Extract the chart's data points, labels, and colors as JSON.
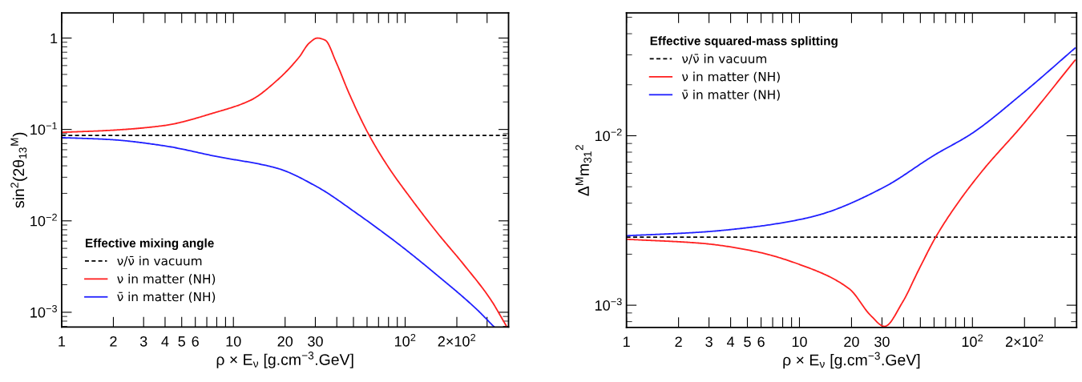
{
  "chart_data": [
    {
      "type": "line",
      "xlabel": "ρ × E$_{ν}$ [g.cm$^{−3}$.GeV]",
      "ylabel": "sin$^{2}$(2θ$_{13}$$^{M}$)",
      "legend_title": "Effective mixing angle",
      "legend": "bottom left",
      "log": "xy",
      "grid": false,
      "line_style": "solid",
      "marker": "none",
      "xlim": [
        1,
        400
      ],
      "ylim": [
        0.00069,
        1.88
      ],
      "xticks": [
        1,
        2,
        3,
        4,
        5,
        6,
        {
          "value": 7,
          "label": null
        },
        {
          "value": 8,
          "label": null
        },
        {
          "value": 9,
          "label": null
        },
        10,
        20,
        30,
        {
          "value": 40,
          "label": null
        },
        {
          "value": 50,
          "label": null
        },
        {
          "value": 60,
          "label": null
        },
        {
          "value": 70,
          "label": null
        },
        {
          "value": 80,
          "label": null
        },
        {
          "value": 90,
          "label": null
        },
        {
          "value": 100,
          "label": "10$^{2}$"
        },
        {
          "value": 200,
          "label": "2×10$^{2}$"
        },
        {
          "value": 300,
          "label": null
        }
      ],
      "yticks": [
        {
          "value": 0.001,
          "label": "10$^{−3}$"
        },
        {
          "value": 0.01,
          "label": "10$^{−2}$"
        },
        {
          "value": 0.1,
          "label": "10$^{−1}$"
        },
        1
      ],
      "ref_lines": [
        {
          "axis": "y",
          "value": 0.086,
          "label": "ν/ν̄ in vacuum",
          "color": "#000000",
          "line_style": "dashed"
        }
      ],
      "series": [
        {
          "name": "ν in matter (NH)",
          "color": "#ff2020",
          "x": [
            1,
            1.9,
            3.9,
            7.9,
            12.6,
            18,
            24,
            27.7,
            30.8,
            34.3,
            39.5,
            47.2,
            61.8,
            80.7,
            107,
            153,
            219,
            313,
            388
          ],
          "values": [
            0.093,
            0.0977,
            0.11,
            0.154,
            0.209,
            0.346,
            0.61,
            0.885,
            1.0,
            0.946,
            0.553,
            0.247,
            0.086,
            0.0376,
            0.018,
            0.0075,
            0.00334,
            0.0014,
            0.00071
          ]
        },
        {
          "name": "ν̄ in matter (NH)",
          "color": "#2020ff",
          "x": [
            1,
            1.9,
            3.9,
            7.9,
            18,
            30.8,
            52.5,
            89.8,
            153,
            262,
            330
          ],
          "values": [
            0.0814,
            0.0776,
            0.0665,
            0.0508,
            0.0376,
            0.0235,
            0.012,
            0.00573,
            0.00256,
            0.00107,
            0.00069
          ]
        }
      ]
    },
    {
      "type": "line",
      "xlabel": "ρ × E$_{ν}$ [g.cm$^{−3}$.GeV]",
      "ylabel": "Δ$^{M}$m$_{31}$$^{2}$",
      "legend_title": "Effective squared-mass splitting",
      "legend": "top left",
      "log": "xy",
      "grid": false,
      "line_style": "solid",
      "marker": "none",
      "xlim": [
        1,
        400
      ],
      "ylim": [
        0.00074,
        0.053
      ],
      "xticks": [
        1,
        2,
        3,
        4,
        5,
        6,
        {
          "value": 7,
          "label": null
        },
        {
          "value": 8,
          "label": null
        },
        {
          "value": 9,
          "label": null
        },
        10,
        20,
        30,
        {
          "value": 40,
          "label": null
        },
        {
          "value": 50,
          "label": null
        },
        {
          "value": 60,
          "label": null
        },
        {
          "value": 70,
          "label": null
        },
        {
          "value": 80,
          "label": null
        },
        {
          "value": 90,
          "label": null
        },
        {
          "value": 100,
          "label": "10$^{2}$"
        },
        {
          "value": 200,
          "label": "2×10$^{2}$"
        },
        {
          "value": 300,
          "label": null
        }
      ],
      "yticks": [
        {
          "value": 0.001,
          "label": "10$^{−3}$"
        },
        {
          "value": 0.01,
          "label": "10$^{−2}$"
        }
      ],
      "ref_lines": [
        {
          "axis": "y",
          "value": 0.00252,
          "label": "ν/ν̄ in vacuum",
          "color": "#000000",
          "line_style": "dashed"
        }
      ],
      "series": [
        {
          "name": "ν in matter (NH)",
          "color": "#ff2020",
          "x": [
            1,
            2.7,
            5.5,
            10,
            19.4,
            25.8,
            31,
            39.4,
            48.8,
            61.3,
            80.2,
            114,
            194,
            392
          ],
          "values": [
            0.00245,
            0.00232,
            0.00208,
            0.00174,
            0.00125,
            0.00087,
            0.00075,
            0.00104,
            0.00161,
            0.00252,
            0.00386,
            0.0062,
            0.0115,
            0.0279
          ]
        },
        {
          "name": "ν̄ in matter (NH)",
          "color": "#2020ff",
          "x": [
            1,
            2.7,
            5.5,
            10,
            13.6,
            30.8,
            60.3,
            99,
            194,
            392
          ],
          "values": [
            0.00257,
            0.0027,
            0.0029,
            0.0032,
            0.00346,
            0.00497,
            0.00769,
            0.0103,
            0.0177,
            0.0329
          ]
        }
      ]
    }
  ]
}
